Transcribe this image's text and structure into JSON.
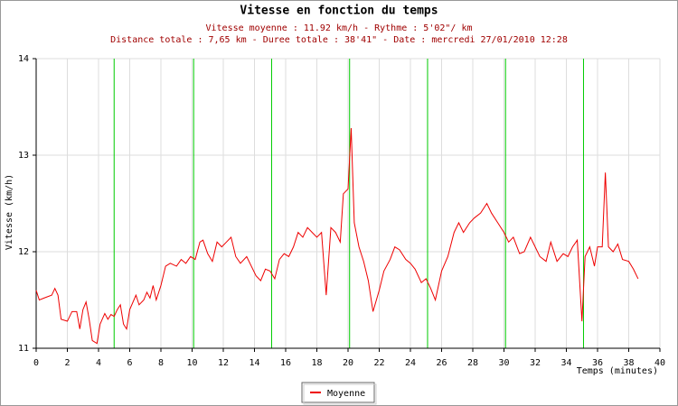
{
  "chart_data": {
    "type": "line",
    "title": "Vitesse en fonction du temps",
    "subtitle": [
      "Vitesse moyenne : 11.92 km/h - Rythme : 5'02\"/ km",
      "Distance totale : 7,65 km - Duree totale : 38'41\" - Date : mercredi 27/01/2010 12:28"
    ],
    "x_label": "Temps (minutes)",
    "y_label": "Vitesse (km/h)",
    "xlim": [
      0,
      40
    ],
    "ylim": [
      11,
      14
    ],
    "xticks": [
      0,
      2,
      4,
      6,
      8,
      10,
      12,
      14,
      16,
      18,
      20,
      22,
      24,
      26,
      28,
      30,
      32,
      34,
      36,
      38,
      40
    ],
    "yticks": [
      11,
      12,
      13,
      14
    ],
    "grid": true,
    "km_marks": [
      5.0,
      10.1,
      15.1,
      20.1,
      25.1,
      30.1,
      35.1
    ],
    "km_mark_color": "#00cc00",
    "series": [
      {
        "name": "Moyenne",
        "color": "#ee0000",
        "x": [
          0,
          0.2,
          0.5,
          1,
          1.2,
          1.4,
          1.6,
          2,
          2.3,
          2.6,
          2.8,
          3,
          3.2,
          3.4,
          3.6,
          3.9,
          4.1,
          4.4,
          4.6,
          4.8,
          5,
          5.2,
          5.4,
          5.6,
          5.8,
          6,
          6.4,
          6.6,
          6.9,
          7.1,
          7.3,
          7.5,
          7.7,
          8,
          8.3,
          8.6,
          9,
          9.3,
          9.6,
          9.9,
          10.2,
          10.5,
          10.7,
          11,
          11.3,
          11.6,
          11.9,
          12.2,
          12.5,
          12.8,
          13.1,
          13.5,
          13.8,
          14.1,
          14.4,
          14.7,
          15,
          15.3,
          15.6,
          15.9,
          16.2,
          16.5,
          16.8,
          17.1,
          17.4,
          17.7,
          18,
          18.3,
          18.6,
          18.9,
          19.2,
          19.5,
          19.7,
          20,
          20.2,
          20.4,
          20.7,
          21,
          21.3,
          21.6,
          22,
          22.3,
          22.7,
          23,
          23.3,
          23.7,
          24,
          24.3,
          24.7,
          25,
          25.3,
          25.6,
          26,
          26.4,
          26.8,
          27.1,
          27.4,
          27.8,
          28.1,
          28.5,
          28.9,
          29.2,
          29.6,
          30,
          30.3,
          30.6,
          31,
          31.3,
          31.7,
          32,
          32.3,
          32.7,
          33,
          33.4,
          33.8,
          34.1,
          34.4,
          34.7,
          35,
          35.2,
          35.5,
          35.8,
          36,
          36.3,
          36.5,
          36.7,
          37,
          37.3,
          37.6,
          38,
          38.3,
          38.6
        ],
        "values": [
          11.6,
          11.5,
          11.52,
          11.55,
          11.62,
          11.55,
          11.3,
          11.28,
          11.38,
          11.38,
          11.2,
          11.4,
          11.48,
          11.3,
          11.08,
          11.05,
          11.25,
          11.36,
          11.3,
          11.35,
          11.33,
          11.4,
          11.45,
          11.25,
          11.2,
          11.4,
          11.55,
          11.45,
          11.5,
          11.58,
          11.52,
          11.65,
          11.5,
          11.65,
          11.85,
          11.88,
          11.85,
          11.92,
          11.88,
          11.95,
          11.92,
          12.1,
          12.12,
          11.98,
          11.9,
          12.1,
          12.05,
          12.1,
          12.15,
          11.95,
          11.88,
          11.95,
          11.85,
          11.75,
          11.7,
          11.82,
          11.8,
          11.72,
          11.92,
          11.98,
          11.95,
          12.05,
          12.2,
          12.15,
          12.25,
          12.2,
          12.15,
          12.2,
          11.55,
          12.25,
          12.2,
          12.1,
          12.6,
          12.65,
          13.28,
          12.3,
          12.05,
          11.9,
          11.7,
          11.38,
          11.6,
          11.8,
          11.92,
          12.05,
          12.02,
          11.92,
          11.88,
          11.82,
          11.68,
          11.72,
          11.62,
          11.5,
          11.8,
          11.95,
          12.2,
          12.3,
          12.2,
          12.3,
          12.35,
          12.4,
          12.5,
          12.4,
          12.3,
          12.2,
          12.1,
          12.15,
          11.98,
          12.0,
          12.15,
          12.05,
          11.95,
          11.9,
          12.1,
          11.9,
          11.98,
          11.95,
          12.05,
          12.12,
          11.28,
          11.95,
          12.05,
          11.85,
          12.05,
          12.05,
          12.82,
          12.05,
          12.0,
          12.08,
          11.92,
          11.9,
          11.82,
          11.72
        ]
      }
    ]
  }
}
